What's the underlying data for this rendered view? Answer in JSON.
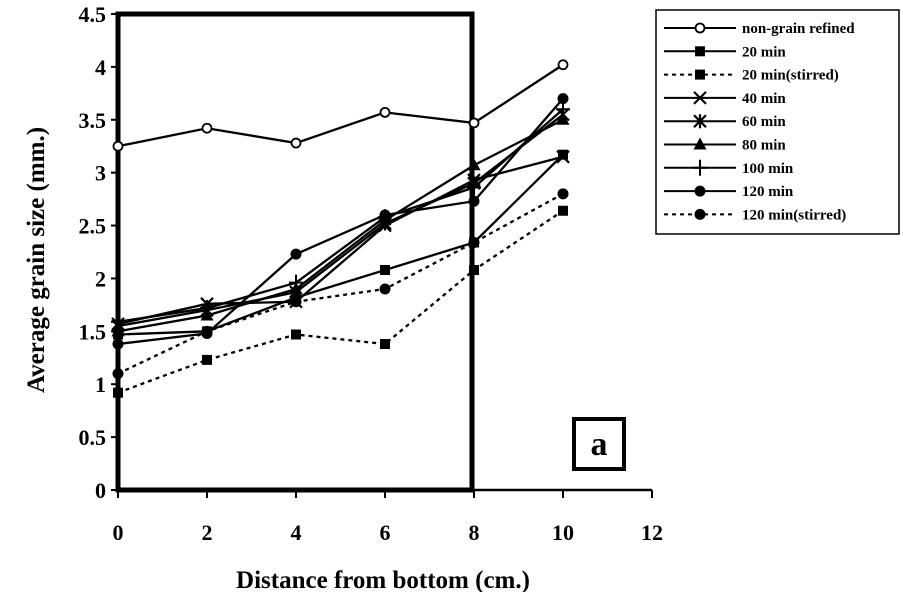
{
  "chart_data": {
    "type": "line",
    "panel_label": "a",
    "xlabel": "Distance from bottom (cm.)",
    "ylabel": "Average grain size (mm.)",
    "xlim": [
      0,
      12
    ],
    "ylim": [
      0,
      4.5
    ],
    "xticks": [
      "0",
      "2",
      "4",
      "6",
      "8",
      "10",
      "12"
    ],
    "yticks": [
      "0",
      "0.5",
      "1",
      "1.5",
      "2",
      "2.5",
      "3",
      "3.5",
      "4",
      "4.5"
    ],
    "grid": false,
    "legend_position": "right",
    "x": [
      0,
      2,
      4,
      6,
      8,
      10
    ],
    "series": [
      {
        "name": "non-grain refined",
        "marker": "open-circle",
        "dash": "solid",
        "values": [
          3.25,
          3.42,
          3.28,
          3.57,
          3.47,
          4.02
        ]
      },
      {
        "name": "20 min",
        "marker": "square",
        "dash": "solid",
        "values": [
          1.47,
          1.5,
          1.82,
          2.08,
          2.34,
          3.17
        ]
      },
      {
        "name": "20 min(stirred)",
        "marker": "square",
        "dash": "dotted",
        "values": [
          0.92,
          1.23,
          1.47,
          1.38,
          2.08,
          2.64
        ]
      },
      {
        "name": "40 min",
        "marker": "x",
        "dash": "solid",
        "values": [
          1.57,
          1.76,
          1.78,
          2.5,
          2.93,
          3.15
        ]
      },
      {
        "name": "60 min",
        "marker": "asterisk",
        "dash": "solid",
        "values": [
          1.55,
          1.7,
          1.87,
          2.52,
          2.9,
          3.55
        ]
      },
      {
        "name": "80 min",
        "marker": "triangle",
        "dash": "solid",
        "values": [
          1.5,
          1.65,
          1.9,
          2.55,
          3.07,
          3.5
        ]
      },
      {
        "name": "100 min",
        "marker": "plus",
        "dash": "solid",
        "values": [
          1.59,
          1.72,
          1.96,
          2.58,
          2.86,
          3.6
        ]
      },
      {
        "name": "120 min",
        "marker": "circle",
        "dash": "solid",
        "values": [
          1.38,
          1.48,
          2.23,
          2.6,
          2.73,
          3.7
        ]
      },
      {
        "name": "120 min(stirred)",
        "marker": "circle",
        "dash": "dotted",
        "values": [
          1.1,
          1.5,
          1.78,
          1.9,
          2.34,
          2.8
        ]
      }
    ]
  }
}
